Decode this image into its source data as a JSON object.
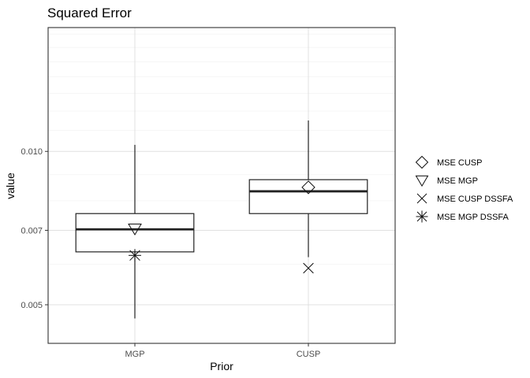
{
  "chart_data": {
    "type": "boxplot",
    "title": "Squared Error",
    "xlabel": "Prior",
    "ylabel": "value",
    "y_scale": "log",
    "ylim": [
      0.0042,
      0.0175
    ],
    "y_ticks": [
      0.005,
      0.007,
      0.01
    ],
    "y_tick_labels": [
      "0.005",
      "0.007",
      "0.010"
    ],
    "grid": true,
    "legend_position": "right",
    "categories": [
      "MGP",
      "CUSP"
    ],
    "boxes": [
      {
        "category": "MGP",
        "whisker_low": 0.0047,
        "q1": 0.00635,
        "median": 0.00703,
        "q3": 0.00755,
        "whisker_high": 0.0103
      },
      {
        "category": "CUSP",
        "whisker_low": 0.0062,
        "q1": 0.00755,
        "median": 0.00835,
        "q3": 0.0088,
        "whisker_high": 0.0115
      }
    ],
    "points": [
      {
        "series": "MSE CUSP",
        "category": "CUSP",
        "value": 0.0085
      },
      {
        "series": "MSE MGP",
        "category": "MGP",
        "value": 0.00705
      },
      {
        "series": "MSE CUSP DSSFA",
        "category": "CUSP",
        "value": 0.0059
      },
      {
        "series": "MSE MGP DSSFA",
        "category": "MGP",
        "value": 0.00625
      }
    ],
    "legend": [
      {
        "name": "MSE CUSP",
        "shape": "diamond"
      },
      {
        "name": "MSE MGP",
        "shape": "triangle-down"
      },
      {
        "name": "MSE CUSP DSSFA",
        "shape": "x"
      },
      {
        "name": "MSE MGP DSSFA",
        "shape": "asterisk"
      }
    ]
  }
}
